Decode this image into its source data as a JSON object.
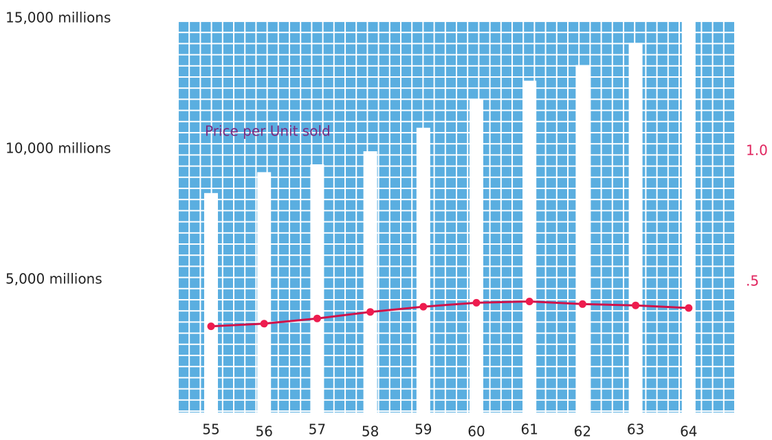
{
  "chart_data": {
    "type": "bar",
    "categories": [
      "55",
      "56",
      "57",
      "58",
      "59",
      "60",
      "61",
      "62",
      "63",
      "64"
    ],
    "series": [
      {
        "color": "#ffffff",
        "values": [
          8400,
          9200,
          9500,
          10000,
          10900,
          12000,
          12700,
          13300,
          14150,
          15000
        ]
      },
      {
        "name": "Price per Unit sold",
        "color": "#d0124a",
        "axis": "y2",
        "type": "line",
        "values": [
          0.33,
          0.34,
          0.36,
          0.385,
          0.405,
          0.42,
          0.425,
          0.415,
          0.41,
          0.4
        ]
      }
    ],
    "ylim": [
      0,
      15000
    ],
    "yticks": [
      {
        "value": 5000,
        "label": "5,000 millions"
      },
      {
        "value": 10000,
        "label": "10,000 millions"
      },
      {
        "value": 15000,
        "label": "15,000 millions"
      }
    ],
    "y2lim": [
      0,
      1.5
    ],
    "y2ticks": [
      {
        "value": 0.5,
        "label": ".5"
      },
      {
        "value": 1,
        "label": "1.0"
      }
    ],
    "background_color": "#5aaee0"
  }
}
